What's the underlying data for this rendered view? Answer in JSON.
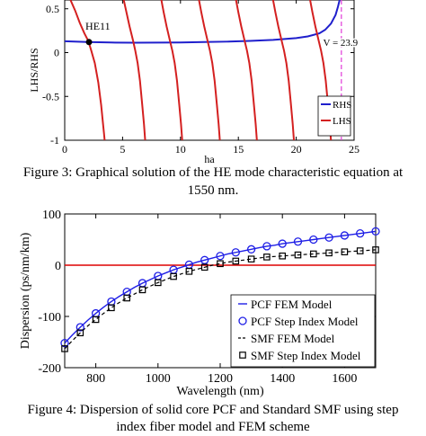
{
  "figure3": {
    "caption_line1": "Figure 3: Graphical solution of the HE mode characteristic equation at",
    "caption_line2": "1550 nm."
  },
  "figure4": {
    "caption_line1": "Figure 4: Dispersion of solid core PCF and Standard SMF using step",
    "caption_line2": "index fiber model and FEM scheme"
  },
  "colors": {
    "rhs": "#1f1fcc",
    "lhs": "#d42020",
    "v_line": "#e23ad8",
    "pcf": "#1e1ee6",
    "smf": "#000000",
    "zero_line": "#dd0000"
  },
  "chart_data": [
    {
      "type": "line",
      "ylabel": "LHS/RHS",
      "xlabel": "ha",
      "xlim": [
        0,
        25
      ],
      "ylim": [
        -1,
        0.6
      ],
      "x_ticks": [
        "0",
        "5",
        "10",
        "15",
        "20",
        "25"
      ],
      "y_ticks": [
        "-1",
        "-0.5",
        "0",
        "0.5"
      ],
      "series": [
        {
          "name": "RHS",
          "x": [
            0,
            2,
            4,
            6,
            8,
            10,
            12,
            14,
            16,
            18,
            20,
            21,
            22,
            22.5,
            23,
            23.4,
            23.6,
            23.75
          ],
          "y": [
            0.13,
            0.12,
            0.115,
            0.113,
            0.114,
            0.116,
            0.12,
            0.125,
            0.133,
            0.145,
            0.165,
            0.185,
            0.22,
            0.26,
            0.33,
            0.43,
            0.52,
            0.6
          ]
        },
        {
          "name": "LHS",
          "branches": [
            {
              "x": [
                0.5,
                0.9,
                1.3,
                1.7,
                2.05,
                2.3,
                2.6,
                2.9,
                3.15,
                3.3,
                3.4,
                3.45
              ],
              "y": [
                0.6,
                0.48,
                0.34,
                0.22,
                0.13,
                0.02,
                -0.12,
                -0.34,
                -0.6,
                -0.8,
                -0.93,
                -1.0
              ]
            },
            {
              "x": [
                5.1,
                5.35,
                5.6,
                5.9,
                6.1,
                6.3,
                6.5,
                6.7,
                6.85,
                6.95
              ],
              "y": [
                0.6,
                0.45,
                0.3,
                0.14,
                0.02,
                -0.12,
                -0.32,
                -0.6,
                -0.82,
                -1.0
              ]
            },
            {
              "x": [
                8.35,
                8.55,
                8.8,
                9.1,
                9.3,
                9.5,
                9.7,
                9.9,
                10.05,
                10.15
              ],
              "y": [
                0.6,
                0.46,
                0.3,
                0.13,
                0.02,
                -0.12,
                -0.32,
                -0.6,
                -0.82,
                -1.0
              ]
            },
            {
              "x": [
                11.6,
                11.8,
                12.05,
                12.35,
                12.55,
                12.75,
                12.95,
                13.15,
                13.3,
                13.4
              ],
              "y": [
                0.6,
                0.46,
                0.3,
                0.13,
                0.02,
                -0.12,
                -0.32,
                -0.6,
                -0.82,
                -1.0
              ]
            },
            {
              "x": [
                14.8,
                15.0,
                15.25,
                15.55,
                15.75,
                15.95,
                16.15,
                16.35,
                16.5,
                16.6
              ],
              "y": [
                0.6,
                0.46,
                0.3,
                0.13,
                0.02,
                -0.12,
                -0.32,
                -0.6,
                -0.82,
                -1.0
              ]
            },
            {
              "x": [
                18.0,
                18.2,
                18.45,
                18.75,
                18.95,
                19.15,
                19.35,
                19.55,
                19.7,
                19.8
              ],
              "y": [
                0.6,
                0.46,
                0.3,
                0.13,
                0.02,
                -0.12,
                -0.32,
                -0.6,
                -0.82,
                -1.0
              ]
            },
            {
              "x": [
                21.2,
                21.4,
                21.65,
                21.95,
                22.15,
                22.35,
                22.55,
                22.75,
                22.9,
                23.0
              ],
              "y": [
                0.6,
                0.46,
                0.3,
                0.13,
                0.02,
                -0.12,
                -0.32,
                -0.6,
                -0.82,
                -1.0
              ]
            }
          ]
        }
      ],
      "marker": {
        "label": "HE11",
        "x": 2.1,
        "y": 0.12
      },
      "vline": {
        "x": 23.9,
        "label": "V = 23.9"
      },
      "legend": [
        "RHS",
        "LHS"
      ],
      "legend_position": "bottom-right"
    },
    {
      "type": "line",
      "xlabel": "Wavelength (nm)",
      "ylabel": "Dispersion (ps/nm/km)",
      "xlim": [
        700,
        1700
      ],
      "ylim": [
        -200,
        100
      ],
      "x_ticks": [
        "800",
        "1000",
        "1200",
        "1400",
        "1600"
      ],
      "y_ticks": [
        "-200",
        "-100",
        "0",
        "100"
      ],
      "x": [
        700,
        725,
        750,
        775,
        800,
        825,
        850,
        875,
        900,
        925,
        950,
        975,
        1000,
        1025,
        1050,
        1075,
        1100,
        1125,
        1150,
        1175,
        1200,
        1225,
        1250,
        1275,
        1300,
        1325,
        1350,
        1375,
        1400,
        1425,
        1450,
        1475,
        1500,
        1525,
        1550,
        1575,
        1600,
        1625,
        1650,
        1675,
        1700
      ],
      "series": [
        {
          "name": "PCF FEM Model",
          "style": "line",
          "values": [
            -152,
            -136,
            -121,
            -107,
            -94,
            -82,
            -71,
            -61,
            -52,
            -43,
            -35,
            -28,
            -21,
            -15,
            -9,
            -4,
            1,
            6,
            10,
            14,
            18,
            22,
            25,
            28,
            31,
            34,
            37,
            39,
            42,
            44,
            46,
            48,
            50,
            52,
            54,
            56,
            58,
            60,
            62,
            64,
            66
          ]
        },
        {
          "name": "PCF Step Index Model",
          "style": "circles",
          "values": [
            -152,
            -136,
            -121,
            -107,
            -94,
            -82,
            -71,
            -61,
            -52,
            -43,
            -35,
            -28,
            -21,
            -15,
            -9,
            -4,
            1,
            6,
            10,
            14,
            18,
            22,
            25,
            28,
            31,
            34,
            37,
            39,
            42,
            44,
            46,
            48,
            50,
            52,
            54,
            56,
            58,
            60,
            62,
            64,
            66
          ]
        },
        {
          "name": "SMF FEM Model",
          "style": "dashed",
          "values": [
            -163,
            -147,
            -132,
            -118,
            -106,
            -94,
            -83,
            -73,
            -64,
            -56,
            -48,
            -41,
            -34,
            -28,
            -22,
            -17,
            -12,
            -8,
            -4,
            0,
            3,
            6,
            8,
            10,
            12,
            14,
            16,
            17,
            18,
            19,
            20,
            21,
            22,
            23,
            24,
            25,
            26,
            27,
            28,
            29,
            30
          ]
        },
        {
          "name": "SMF Step Index Model",
          "style": "squares",
          "values": [
            -163,
            -147,
            -132,
            -118,
            -106,
            -94,
            -83,
            -73,
            -64,
            -56,
            -48,
            -41,
            -34,
            -28,
            -22,
            -17,
            -12,
            -8,
            -4,
            0,
            3,
            6,
            8,
            10,
            12,
            14,
            16,
            17,
            18,
            19,
            20,
            21,
            22,
            23,
            24,
            25,
            26,
            27,
            28,
            29,
            30
          ]
        }
      ],
      "zero_line": 0,
      "legend": [
        "PCF FEM Model",
        "PCF Step Index Model",
        "SMF FEM Model",
        "SMF Step Index Model"
      ],
      "legend_position": "bottom-right"
    }
  ]
}
